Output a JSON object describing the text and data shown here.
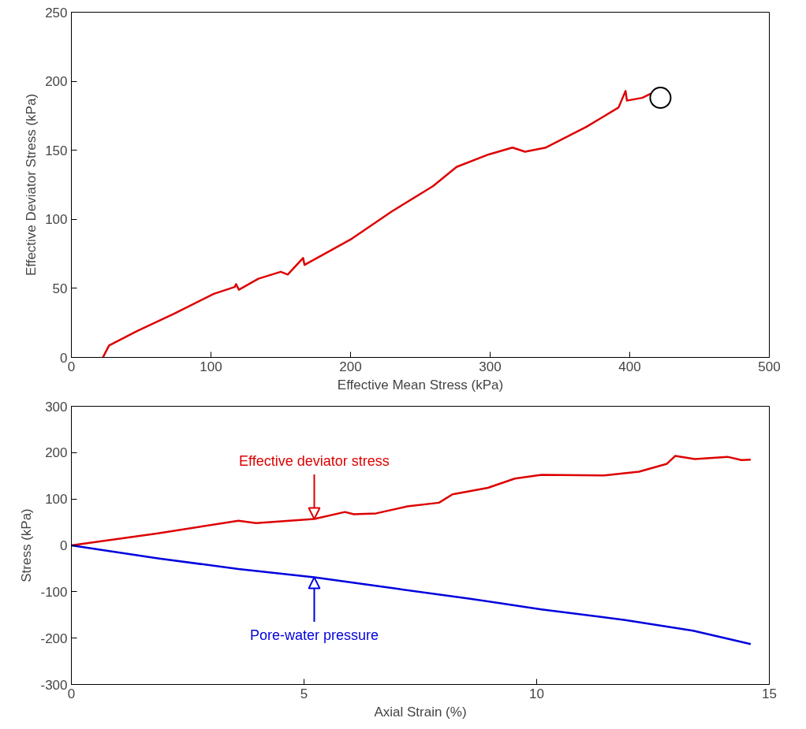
{
  "chart_data": [
    {
      "type": "line",
      "xlabel": "Effective Mean Stress (kPa)",
      "ylabel": "Effective Deviator Stress (kPa)",
      "xlim": [
        0,
        500
      ],
      "ylim": [
        0,
        250
      ],
      "xticks": [
        0,
        100,
        200,
        300,
        400,
        500
      ],
      "yticks": [
        0,
        50,
        100,
        150,
        200,
        250
      ],
      "grid": false,
      "series": [
        {
          "color": "#dd0000",
          "x": [
            22.6,
            27,
            47,
            73.5,
            102,
            117,
            118,
            120,
            134,
            150,
            155,
            166,
            167,
            201,
            230,
            259,
            276,
            299,
            316,
            325,
            340,
            369,
            392,
            397,
            398,
            409,
            415
          ],
          "values": [
            0,
            8.6,
            19,
            31.6,
            46,
            51,
            53,
            49,
            57,
            62,
            60,
            72,
            67,
            86,
            106,
            124,
            138,
            147,
            152,
            149,
            152,
            167,
            181,
            193,
            186,
            188,
            191
          ]
        },
        {
          "type": "scatter",
          "marker": "circle",
          "color": "#000000",
          "x": [
            422
          ],
          "values": [
            188
          ]
        }
      ]
    },
    {
      "type": "line",
      "xlabel": "Axial Strain (%)",
      "ylabel": "Stress (kPa)",
      "xlim": [
        0,
        15
      ],
      "ylim": [
        -300,
        300
      ],
      "xticks": [
        0,
        5,
        10,
        15
      ],
      "yticks": [
        -300,
        -200,
        -100,
        0,
        100,
        200,
        300
      ],
      "grid": false,
      "annotations": [
        {
          "text": "Effective deviator stress",
          "x": 5.22,
          "y": 57
        },
        {
          "text": "Pore-water pressure",
          "x": 5.22,
          "y": -69
        }
      ],
      "series": [
        {
          "color": "#dd0000",
          "x": [
            0,
            1.86,
            3.59,
            3.97,
            5.22,
            5.88,
            6.07,
            6.55,
            7.22,
            7.9,
            8.19,
            8.95,
            9.53,
            10.1,
            11.45,
            12.2,
            12.8,
            12.98,
            13.4,
            14.1,
            14.4,
            14.6
          ],
          "values": [
            0,
            26,
            53,
            48,
            57,
            72,
            67,
            69,
            84,
            92,
            110,
            124,
            144,
            152,
            151,
            159,
            176,
            193,
            186,
            191,
            184,
            185
          ]
        },
        {
          "color": "#0000dd",
          "x": [
            0,
            1.86,
            3.59,
            5.22,
            7.03,
            8.57,
            10.1,
            11.9,
            13.36,
            14.6
          ],
          "values": [
            0,
            -28,
            -51,
            -69,
            -94,
            -115,
            -138,
            -161,
            -184,
            -213
          ]
        }
      ]
    }
  ]
}
